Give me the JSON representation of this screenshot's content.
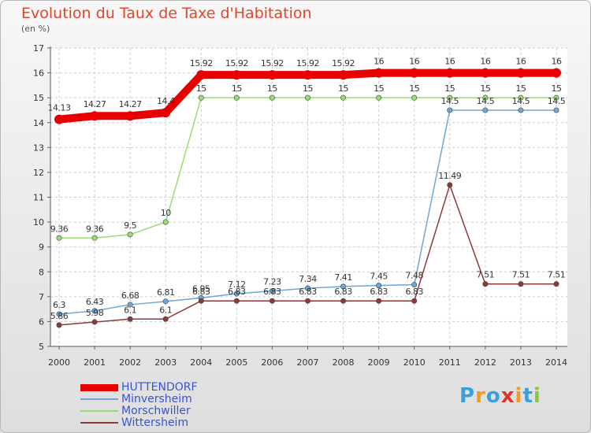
{
  "header": {
    "title": "Evolution du Taux de Taxe d'Habitation",
    "unit": "(en %)"
  },
  "logo": {
    "text": "Proxiti"
  },
  "chart_data": {
    "type": "line",
    "title": "Evolution du Taux de Taxe d'Habitation",
    "ylabel": "(en %)",
    "xlabel": "",
    "x": [
      "2000",
      "2001",
      "2002",
      "2003",
      "2004",
      "2005",
      "2006",
      "2007",
      "2008",
      "2009",
      "2010",
      "2011",
      "2012",
      "2013",
      "2014"
    ],
    "ylim": [
      5,
      17
    ],
    "yticks": [
      5,
      6,
      7,
      8,
      9,
      10,
      11,
      12,
      13,
      14,
      15,
      16,
      17
    ],
    "grid": true,
    "legend_position": "bottom-left",
    "series": [
      {
        "name": "HUTTENDORF",
        "color": "#e60000",
        "values": [
          14.13,
          14.27,
          14.27,
          14.4,
          15.92,
          15.92,
          15.92,
          15.92,
          15.92,
          16,
          16,
          16,
          16,
          16,
          16
        ],
        "labels": [
          "14.13",
          "14.27",
          "14.27",
          "14.4",
          "15.92",
          "15.92",
          "15.92",
          "15.92",
          "15.92",
          "16",
          "16",
          "16",
          "16",
          "16",
          "16"
        ]
      },
      {
        "name": "Minversheim",
        "color": "#6fa6d6",
        "values": [
          6.3,
          6.43,
          6.68,
          6.81,
          6.95,
          7.12,
          7.23,
          7.34,
          7.41,
          7.45,
          7.48,
          14.5,
          14.5,
          14.5,
          14.5
        ],
        "labels": [
          "6.3",
          "6.43",
          "6.68",
          "6.81",
          "6.95",
          "7.12",
          "7.23",
          "7.34",
          "7.41",
          "7.45",
          "7.48",
          "14.5",
          "14.5",
          "14.5",
          "14.5"
        ]
      },
      {
        "name": "Morschwiller",
        "color": "#99dd77",
        "values": [
          9.36,
          9.36,
          9.5,
          10,
          15,
          15,
          15,
          15,
          15,
          15,
          15,
          15,
          15,
          15,
          15
        ],
        "labels": [
          "9.36",
          "9.36",
          "9.5",
          "10",
          "15",
          "15",
          "15",
          "15",
          "15",
          "15",
          "15",
          "15",
          "15",
          "15",
          "15"
        ]
      },
      {
        "name": "Wittersheim",
        "color": "#8b3a3a",
        "values": [
          5.86,
          5.98,
          6.1,
          6.1,
          6.83,
          6.83,
          6.83,
          6.83,
          6.83,
          6.83,
          6.83,
          11.49,
          7.51,
          7.51,
          7.51
        ],
        "labels": [
          "5.86",
          "5.98",
          "6.1",
          "6.1",
          "6.83",
          "6.83",
          "6.83",
          "6.83",
          "6.83",
          "6.83",
          "6.83",
          "11.49",
          "7.51",
          "7.51",
          "7.51"
        ]
      }
    ]
  }
}
